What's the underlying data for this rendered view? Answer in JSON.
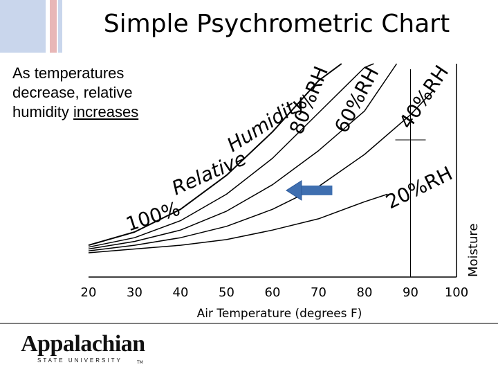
{
  "slide": {
    "title": "Simple Psychrometric Chart",
    "note_line1": "As temperatures",
    "note_line2": "decrease, relative",
    "note_prefix": "humidity ",
    "note_underlined": "increases"
  },
  "logo": {
    "name": "Appalachian",
    "subtitle": "STATE UNIVERSITY",
    "tm": "TM"
  },
  "chart_data": {
    "type": "line",
    "title": "Simple Psychrometric Chart",
    "xlabel": "Air Temperature (degrees F)",
    "ylabel": "Moisture",
    "xlim": [
      20,
      100
    ],
    "ticks": [
      "20",
      "30",
      "40",
      "50",
      "60",
      "70",
      "80",
      "90",
      "100"
    ],
    "series": [
      {
        "name": "100% RH",
        "x": [
          20,
          30,
          40,
          50,
          60,
          70,
          75
        ],
        "y": [
          0.04,
          0.11,
          0.23,
          0.41,
          0.64,
          0.91,
          1.0
        ]
      },
      {
        "name": "80% RH",
        "x": [
          20,
          30,
          40,
          50,
          60,
          70,
          80,
          82
        ],
        "y": [
          0.03,
          0.08,
          0.17,
          0.31,
          0.5,
          0.74,
          0.98,
          1.0
        ]
      },
      {
        "name": "60% RH",
        "x": [
          20,
          30,
          40,
          50,
          60,
          70,
          80,
          87
        ],
        "y": [
          0.02,
          0.06,
          0.12,
          0.22,
          0.36,
          0.54,
          0.75,
          1.0
        ]
      },
      {
        "name": "40% RH",
        "x": [
          20,
          30,
          40,
          50,
          60,
          70,
          80,
          90,
          95
        ],
        "y": [
          0.01,
          0.04,
          0.08,
          0.14,
          0.23,
          0.35,
          0.52,
          0.73,
          0.86
        ]
      },
      {
        "name": "20% RH",
        "x": [
          20,
          30,
          40,
          50,
          60,
          70,
          80,
          85
        ],
        "y": [
          0.0,
          0.02,
          0.04,
          0.07,
          0.12,
          0.18,
          0.27,
          0.31
        ]
      }
    ],
    "rh_labels": [
      "100%",
      "Relative",
      "Humidity",
      "80%RH",
      "60%RH",
      "40%RH",
      "20%RH"
    ],
    "vertical_marker_x": 90,
    "arrow": {
      "from_x": 73,
      "to_x": 63,
      "y": 0.33
    },
    "grid": false,
    "legend": "none"
  }
}
